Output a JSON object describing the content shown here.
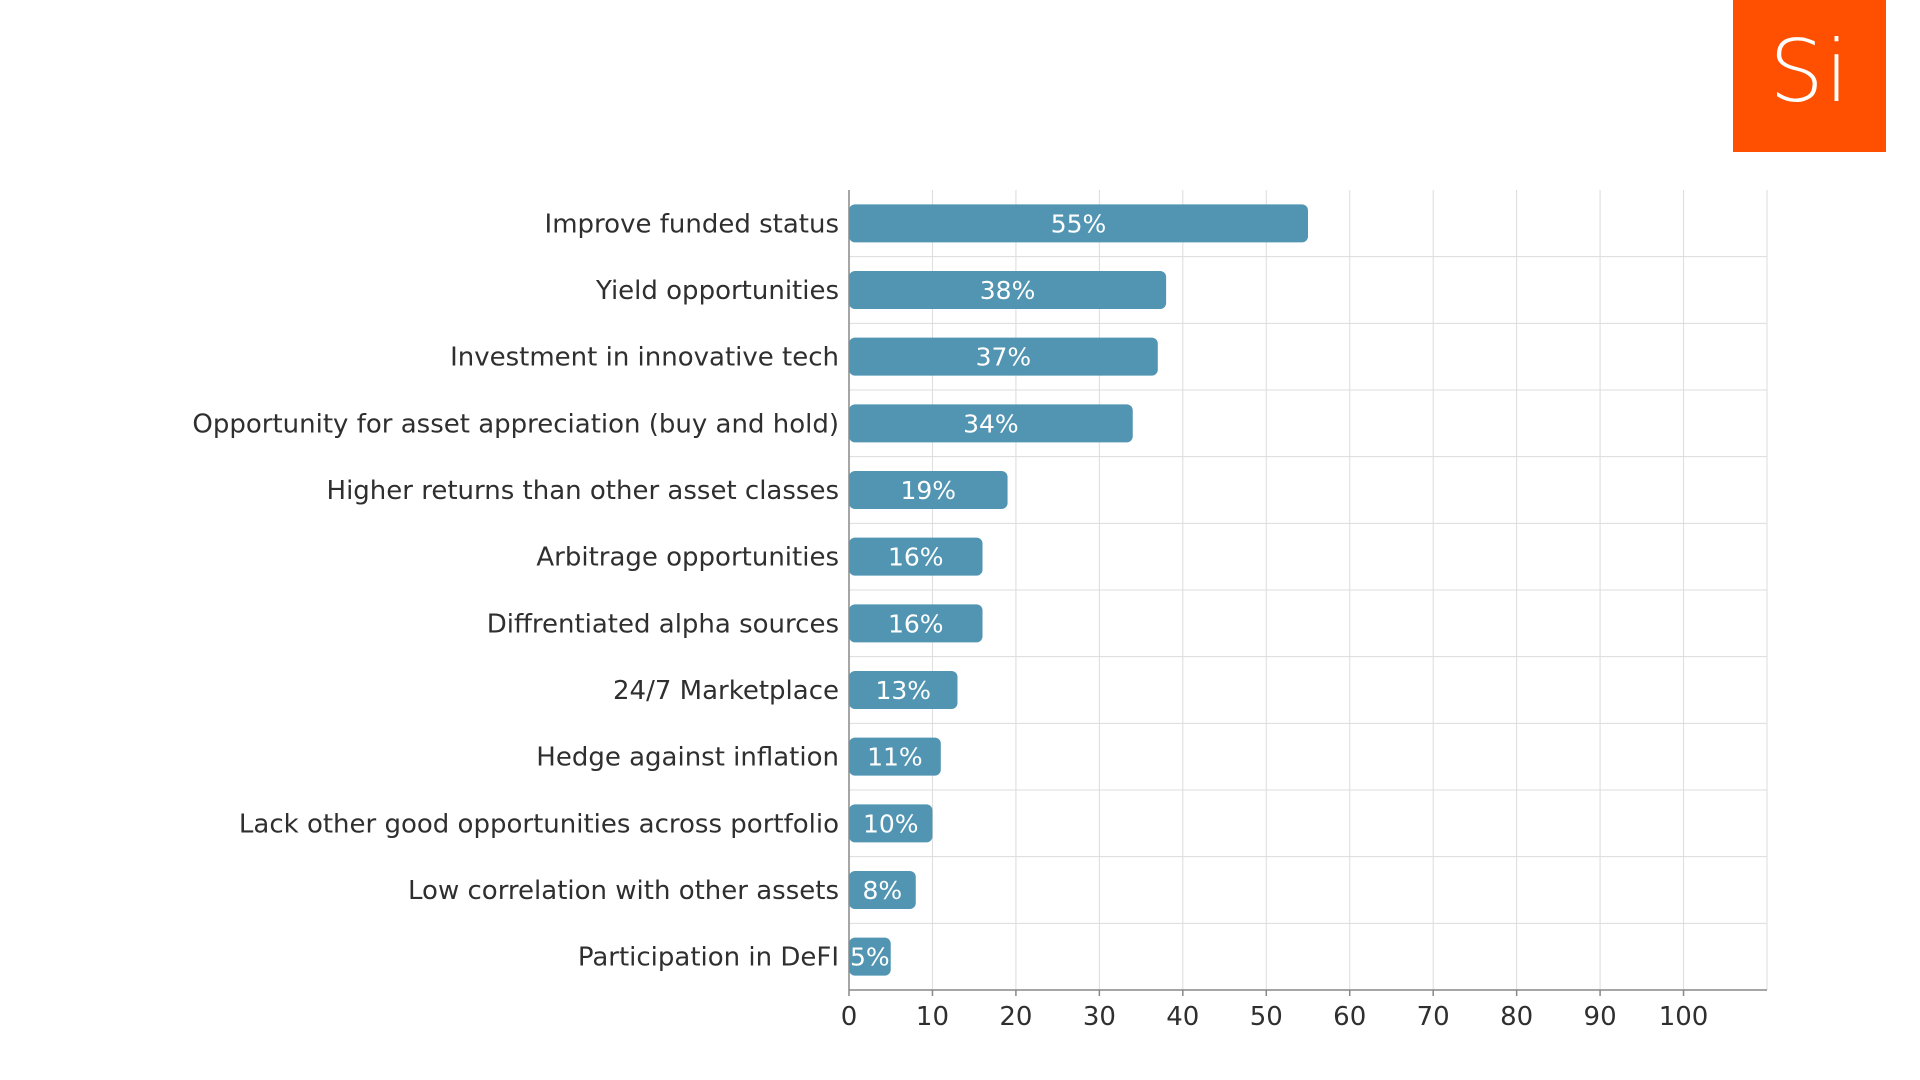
{
  "logo": {
    "text": "Si",
    "background": "#fe5000"
  },
  "chart_data": {
    "type": "bar",
    "orientation": "horizontal",
    "title": "",
    "xlabel": "",
    "ylabel": "",
    "categories": [
      "Improve funded status",
      "Yield opportunities",
      "Investment in innovative tech",
      "Opportunity for asset appreciation (buy and hold)",
      "Higher returns than other asset classes",
      "Arbitrage opportunities",
      "Diffrentiated alpha sources",
      "24/7 Marketplace",
      "Hedge against inflation",
      "Lack other good opportunities across portfolio",
      "Low correlation with other assets",
      "Participation in DeFI"
    ],
    "values": [
      55,
      38,
      37,
      34,
      19,
      16,
      16,
      13,
      11,
      10,
      8,
      5
    ],
    "data_labels": [
      "55%",
      "38%",
      "37%",
      "34%",
      "19%",
      "16%",
      "16%",
      "13%",
      "11%",
      "10%",
      "8%",
      "5%"
    ],
    "xlim": [
      0,
      110
    ],
    "xticks": [
      0,
      10,
      20,
      30,
      40,
      50,
      60,
      70,
      80,
      90,
      100
    ],
    "grid": true,
    "bar_color": "#5195b2",
    "grid_color": "#dcdcdc",
    "axis_color": "#888888"
  }
}
